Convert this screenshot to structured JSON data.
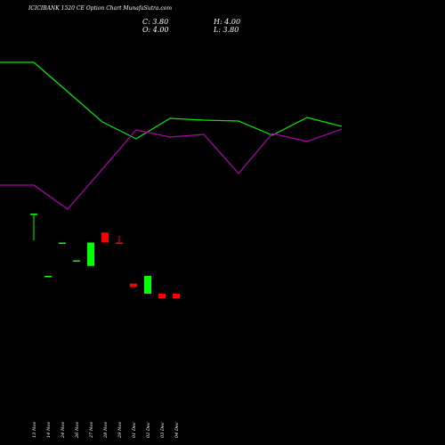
{
  "title": "ICICIBANK 1520 CE Option Chart MunafaSutra.com",
  "ohlc": {
    "open": "O: 4.00",
    "high": "H: 4.00",
    "low": "L: 3.80",
    "close": "C: 3.80"
  },
  "colors": {
    "up": "#00ff00",
    "down": "#ff0000",
    "line_green": "#00ee00",
    "line_purple": "#b000b0",
    "background": "#000000"
  },
  "chart_data": {
    "type": "candlestick",
    "title": "ICICIBANK 1520 CE Option Chart MunafaSutra.com",
    "categories": [
      "13 Nov",
      "14 Nov",
      "24 Nov",
      "26 Nov",
      "27 Nov",
      "28 Nov",
      "29 Nov",
      "01 Dec",
      "02 Dec",
      "03 Dec",
      "04 Dec"
    ],
    "candles": [
      {
        "date": "13 Nov",
        "open": 7.6,
        "high": 7.6,
        "low": 6.4,
        "close": 7.6
      },
      {
        "date": "14 Nov",
        "open": 4.8,
        "high": 4.8,
        "low": 4.8,
        "close": 4.8
      },
      {
        "date": "24 Nov",
        "open": 6.3,
        "high": 6.3,
        "low": 6.3,
        "close": 6.3
      },
      {
        "date": "26 Nov",
        "open": 5.5,
        "high": 5.5,
        "low": 5.5,
        "close": 5.5
      },
      {
        "date": "27 Nov",
        "open": 5.25,
        "high": 6.3,
        "low": 5.25,
        "close": 6.3
      },
      {
        "date": "28 Nov",
        "open": 6.75,
        "high": 6.75,
        "low": 6.3,
        "close": 6.3
      },
      {
        "date": "29 Nov",
        "open": 6.3,
        "high": 6.6,
        "low": 6.25,
        "close": 6.25
      },
      {
        "date": "01 Dec",
        "open": 4.45,
        "high": 4.45,
        "low": 4.3,
        "close": 4.3
      },
      {
        "date": "02 Dec",
        "open": 4.0,
        "high": 4.8,
        "low": 4.0,
        "close": 4.8
      },
      {
        "date": "03 Dec",
        "open": 4.0,
        "high": 4.0,
        "low": 3.8,
        "close": 3.8
      },
      {
        "date": "04 Dec",
        "open": 4.0,
        "high": 4.0,
        "low": 3.8,
        "close": 3.8
      }
    ],
    "series": [
      {
        "color": "#00ee00",
        "values": [
          70,
          70,
          103,
          137,
          156,
          133,
          135,
          136,
          152,
          132,
          142
        ]
      },
      {
        "color": "#b000b0",
        "values": [
          208,
          208,
          235,
          190,
          146,
          154,
          151,
          195,
          150,
          159,
          145
        ]
      }
    ],
    "line_values_note_removed": true
  }
}
